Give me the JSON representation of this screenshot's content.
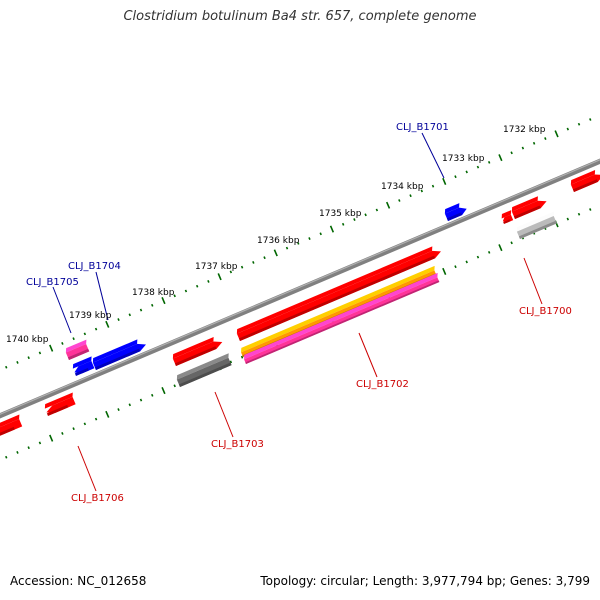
{
  "title": "Clostridium botulinum Ba4 str. 657, complete genome",
  "footer": {
    "accession": "Accession: NC_012658",
    "topology": "Topology: circular; Length: 3,977,794 bp; Genes: 3,799"
  },
  "scale": [
    "1732 kbp",
    "1733 kbp",
    "1734 kbp",
    "1735 kbp",
    "1736 kbp",
    "1737 kbp",
    "1738 kbp",
    "1739 kbp",
    "1740 kbp"
  ],
  "genes": [
    {
      "id": "CLJ_B1700",
      "label": "CLJ_B1700",
      "color": "#cc0000"
    },
    {
      "id": "CLJ_B1701",
      "label": "CLJ_B1701",
      "color": "#000099"
    },
    {
      "id": "CLJ_B1702",
      "label": "CLJ_B1702",
      "color": "#cc0000"
    },
    {
      "id": "CLJ_B1703",
      "label": "CLJ_B1703",
      "color": "#cc0000"
    },
    {
      "id": "CLJ_B1704",
      "label": "CLJ_B1704",
      "color": "#000099"
    },
    {
      "id": "CLJ_B1705",
      "label": "CLJ_B1705",
      "color": "#000099"
    },
    {
      "id": "CLJ_B1706",
      "label": "CLJ_B1706",
      "color": "#cc0000"
    }
  ],
  "colors": {
    "backbone": "#808080",
    "forward": "#ff0000",
    "reverse": "#0000ff",
    "pink": "#ff3399",
    "orange": "#ff9900",
    "gray": "#666666",
    "light_gray": "#bbbbbb",
    "tick": "#006600"
  }
}
